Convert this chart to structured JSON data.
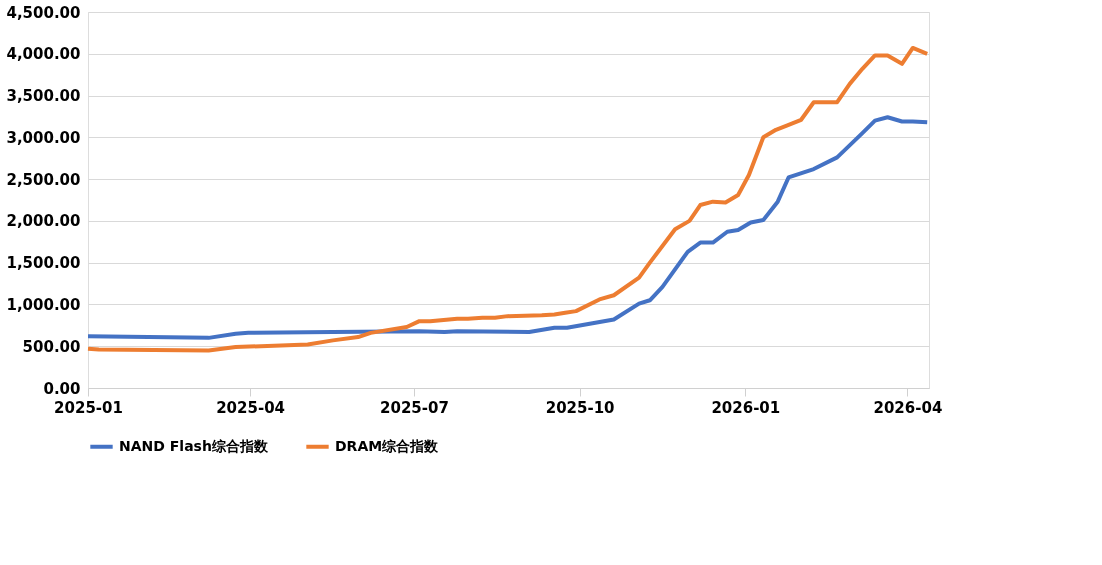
{
  "chart_data": {
    "type": "line",
    "xlim": [
      "2025-01-01",
      "2026-04-13"
    ],
    "xticks": [
      "2025-01",
      "2025-04",
      "2025-07",
      "2025-10",
      "2026-01",
      "2026-04"
    ],
    "ylim": [
      0,
      4500
    ],
    "yticks": [
      {
        "value": 0,
        "label": "0.00"
      },
      {
        "value": 500,
        "label": "500.00"
      },
      {
        "value": 1000,
        "label": "1,000.00"
      },
      {
        "value": 1500,
        "label": "1,500.00"
      },
      {
        "value": 2000,
        "label": "2,000.00"
      },
      {
        "value": 2500,
        "label": "2,500.00"
      },
      {
        "value": 3000,
        "label": "3,000.00"
      },
      {
        "value": 3500,
        "label": "3,500.00"
      },
      {
        "value": 4000,
        "label": "4,000.00"
      },
      {
        "value": 4500,
        "label": "4,500.00"
      }
    ],
    "grid": "y",
    "legend": "bottom",
    "marker": "none",
    "line_style": "solid",
    "series": [
      {
        "name": "NAND Flash综合指数",
        "color": "#4472c4",
        "x": [
          "2025-01-01",
          "2025-03-09",
          "2025-03-24",
          "2025-03-31",
          "2025-05-17",
          "2025-07-04",
          "2025-07-18",
          "2025-07-25",
          "2025-09-03",
          "2025-09-17",
          "2025-09-24",
          "2025-10-20",
          "2025-11-03",
          "2025-11-09",
          "2025-11-16",
          "2025-11-30",
          "2025-12-07",
          "2025-12-14",
          "2025-12-22",
          "2025-12-28",
          "2026-01-04",
          "2026-01-11",
          "2026-01-19",
          "2026-01-25",
          "2026-02-08",
          "2026-02-21",
          "2026-03-07",
          "2026-03-14",
          "2026-03-21",
          "2026-03-29",
          "2026-04-04",
          "2026-04-12"
        ],
        "values": [
          620,
          600,
          650,
          660,
          670,
          680,
          670,
          680,
          670,
          720,
          720,
          820,
          1010,
          1050,
          1210,
          1630,
          1740,
          1740,
          1870,
          1890,
          1980,
          2010,
          2230,
          2520,
          2620,
          2760,
          3050,
          3200,
          3240,
          3190,
          3190,
          3180
        ]
      },
      {
        "name": "DRAM综合指数",
        "color": "#ed7d31",
        "x": [
          "2025-01-01",
          "2025-01-07",
          "2025-03-09",
          "2025-03-24",
          "2025-05-03",
          "2025-05-17",
          "2025-05-31",
          "2025-06-07",
          "2025-06-27",
          "2025-07-04",
          "2025-07-10",
          "2025-07-25",
          "2025-07-31",
          "2025-08-08",
          "2025-08-15",
          "2025-08-22",
          "2025-09-10",
          "2025-09-17",
          "2025-09-23",
          "2025-09-29",
          "2025-10-12",
          "2025-10-20",
          "2025-11-03",
          "2025-11-09",
          "2025-11-23",
          "2025-12-01",
          "2025-12-07",
          "2025-12-14",
          "2025-12-21",
          "2025-12-28",
          "2026-01-03",
          "2026-01-11",
          "2026-01-18",
          "2026-01-24",
          "2026-02-01",
          "2026-02-08",
          "2026-02-21",
          "2026-02-28",
          "2026-03-07",
          "2026-03-14",
          "2026-03-21",
          "2026-03-29",
          "2026-04-04",
          "2026-04-12"
        ],
        "values": [
          470,
          460,
          450,
          490,
          520,
          570,
          610,
          660,
          730,
          800,
          800,
          830,
          830,
          840,
          840,
          860,
          870,
          880,
          900,
          920,
          1060,
          1110,
          1320,
          1500,
          1900,
          2000,
          2190,
          2230,
          2220,
          2310,
          2550,
          3000,
          3090,
          3140,
          3210,
          3420,
          3420,
          3640,
          3820,
          3980,
          3980,
          3880,
          4070,
          4000
        ]
      }
    ]
  }
}
